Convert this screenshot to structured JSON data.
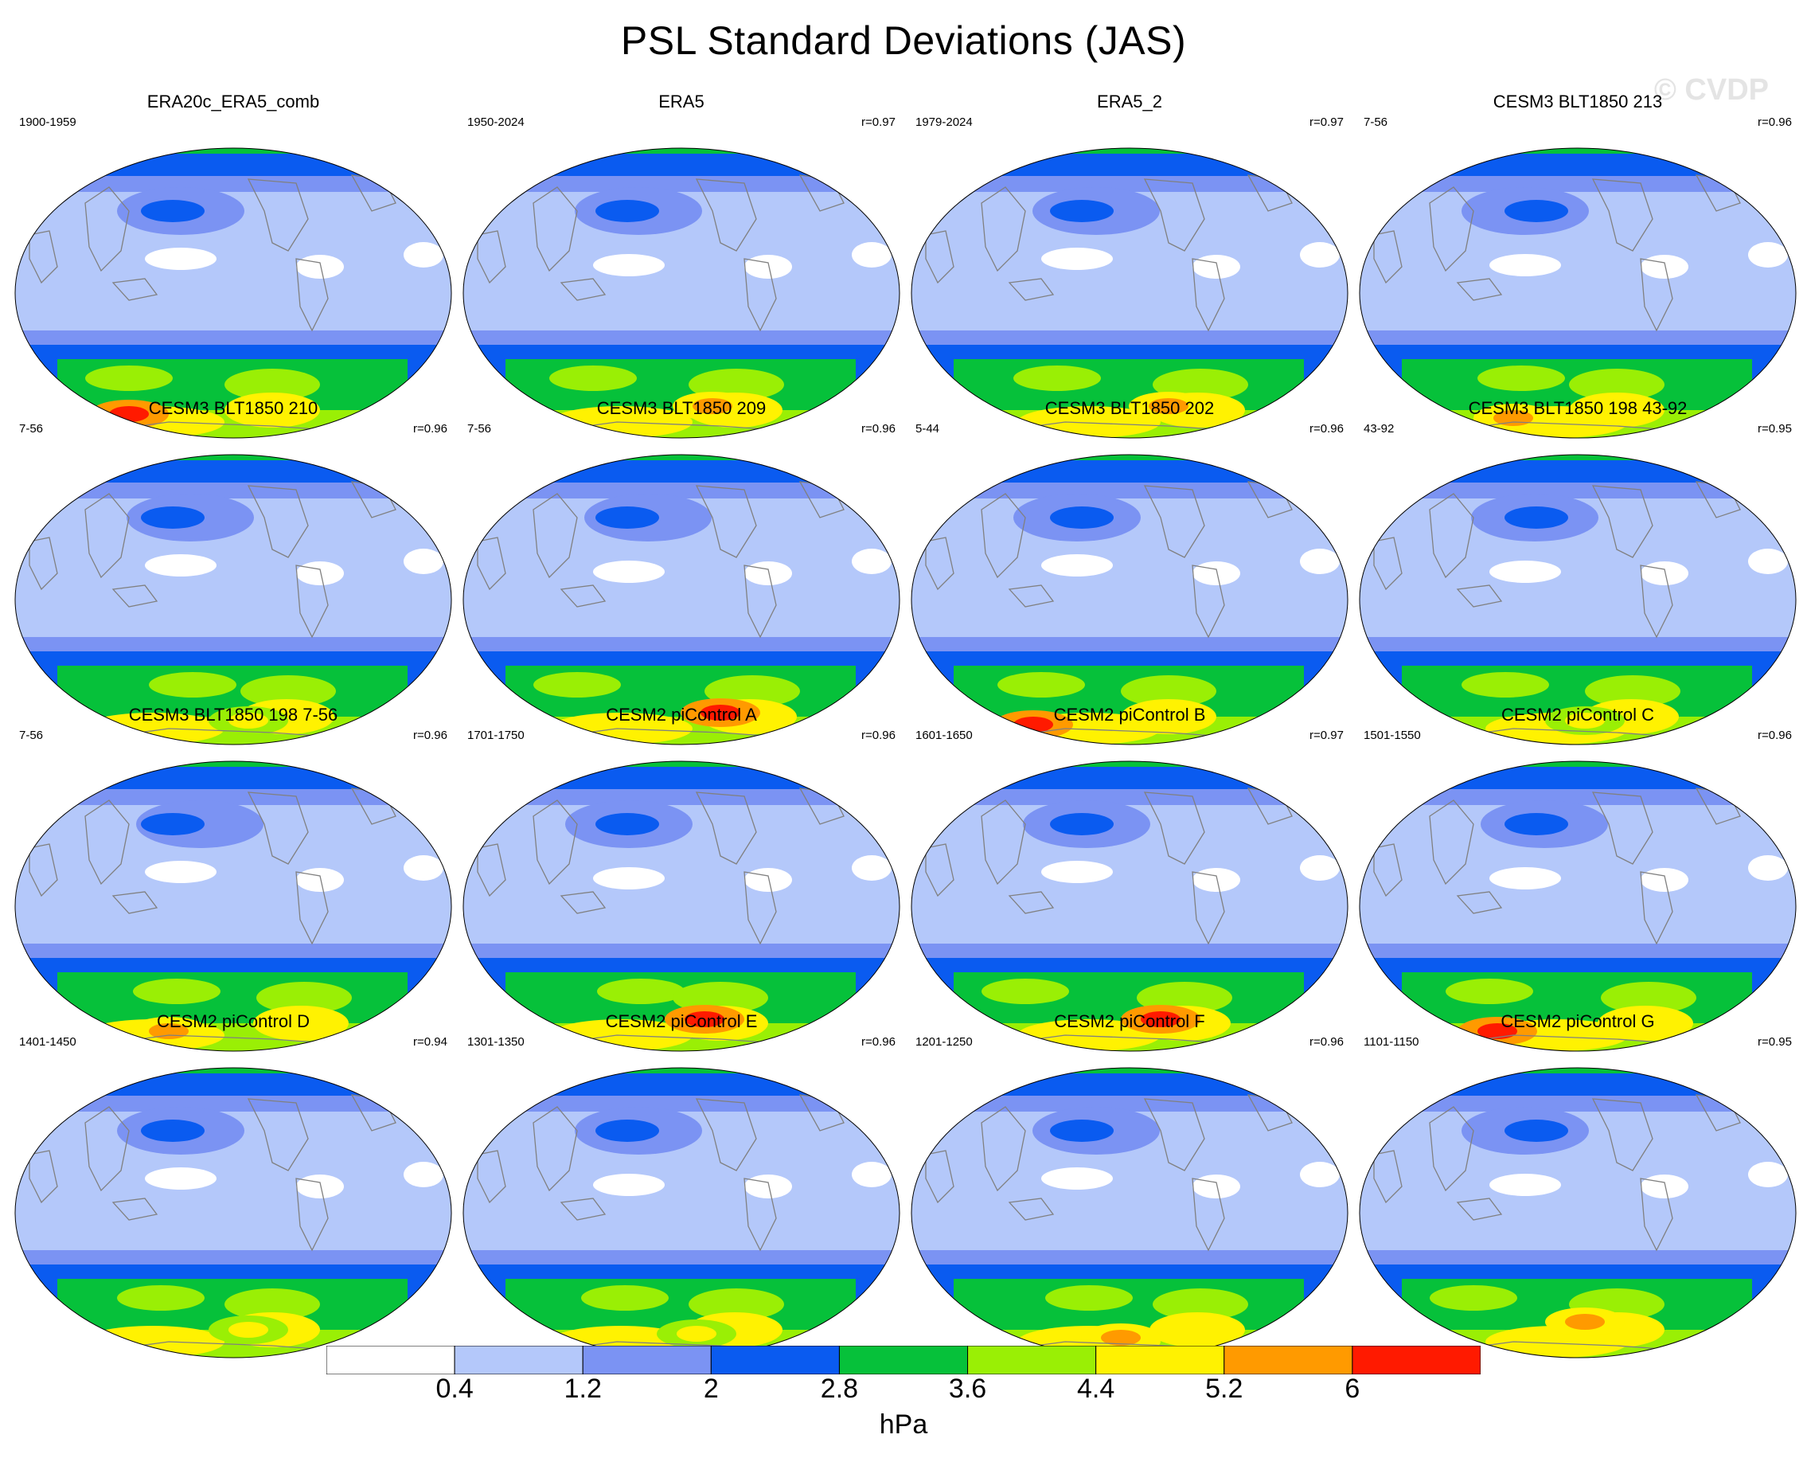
{
  "title": "PSL Standard Deviations (JAS)",
  "watermark": "© CVDP",
  "colors": {
    "fill": [
      "#ffffff",
      "#b4c8fa",
      "#7b93f3",
      "#0a5bf0",
      "#06c13a",
      "#9aef05",
      "#fff201",
      "#ff9a00",
      "#ff1a00"
    ],
    "coast": "#808080",
    "outline": "#000000"
  },
  "panels": [
    {
      "title": "ERA20c_ERA5_comb",
      "years": "1900-1959",
      "r": ""
    },
    {
      "title": "ERA5",
      "years": "1950-2024",
      "r": "r=0.97"
    },
    {
      "title": "ERA5_2",
      "years": "1979-2024",
      "r": "r=0.97"
    },
    {
      "title": "CESM3 BLT1850 213",
      "years": "7-56",
      "r": "r=0.96"
    },
    {
      "title": "CESM3 BLT1850 210",
      "years": "7-56",
      "r": "r=0.96"
    },
    {
      "title": "CESM3 BLT1850 209",
      "years": "7-56",
      "r": "r=0.96"
    },
    {
      "title": "CESM3 BLT1850 202",
      "years": "5-44",
      "r": "r=0.96"
    },
    {
      "title": "CESM3 BLT1850 198 43-92",
      "years": "43-92",
      "r": "r=0.95"
    },
    {
      "title": "CESM3 BLT1850 198 7-56",
      "years": "7-56",
      "r": "r=0.96"
    },
    {
      "title": "CESM2 piControl A",
      "years": "1701-1750",
      "r": "r=0.96"
    },
    {
      "title": "CESM2 piControl B",
      "years": "1601-1650",
      "r": "r=0.97"
    },
    {
      "title": "CESM2 piControl C",
      "years": "1501-1550",
      "r": "r=0.96"
    },
    {
      "title": "CESM2 piControl D",
      "years": "1401-1450",
      "r": "r=0.94"
    },
    {
      "title": "CESM2 piControl E",
      "years": "1301-1350",
      "r": "r=0.96"
    },
    {
      "title": "CESM2 piControl F",
      "years": "1201-1250",
      "r": "r=0.96"
    },
    {
      "title": "CESM2 piControl G",
      "years": "1101-1150",
      "r": "r=0.95"
    }
  ],
  "colorbar": {
    "labels": [
      "0.4",
      "1.2",
      "2",
      "2.8",
      "3.6",
      "4.4",
      "5.2",
      "6"
    ],
    "units": "hPa"
  }
}
